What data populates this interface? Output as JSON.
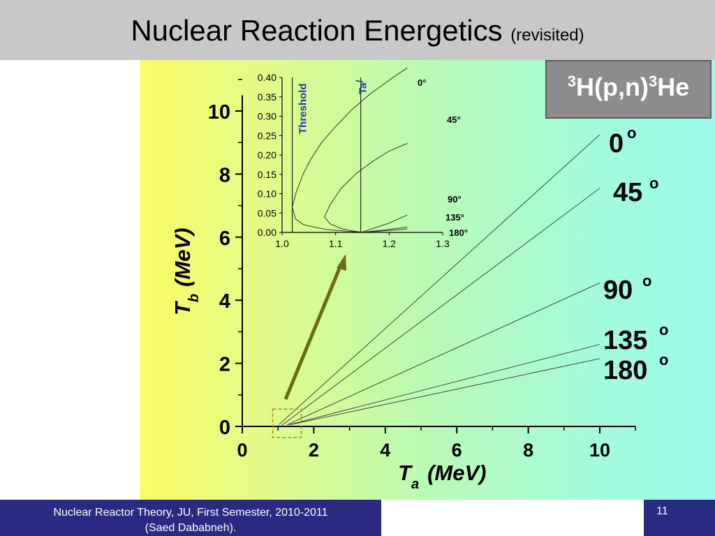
{
  "header": {
    "title": "Nuclear Reaction Energetics",
    "subtitle": "(revisited)"
  },
  "reaction": {
    "pre_sup": "3",
    "pre": "H(p,n)",
    "mid_sup": "3",
    "post": "He"
  },
  "footer": {
    "course_line1": "Nuclear Reactor Theory, JU, First Semester, 2010-2011",
    "course_line2": "(Saed Dababneh).",
    "page_number": "11"
  },
  "colors": {
    "highlight_arrow": "#6b6b14",
    "threshold_line": "#1e3ea8",
    "box_outline": "#b08a10"
  },
  "chart_data": [
    {
      "type": "line",
      "xlabel_main": "T",
      "xlabel_sub": "a",
      "xlabel_unit": "(MeV)",
      "ylabel_main": "T",
      "ylabel_sub": "b",
      "ylabel_unit": "(MeV)",
      "xlim": [
        0,
        11
      ],
      "ylim": [
        0,
        10.5
      ],
      "xticks": [
        0,
        2,
        4,
        6,
        8,
        10
      ],
      "yticks": [
        0,
        2,
        4,
        6,
        8,
        10
      ],
      "grid": false,
      "series": [
        {
          "name": "0",
          "points": [
            [
              1.02,
              0.05
            ],
            [
              10,
              9.25
            ]
          ]
        },
        {
          "name": "45",
          "points": [
            [
              1.1,
              0.03
            ],
            [
              10,
              7.55
            ]
          ]
        },
        {
          "name": "90",
          "points": [
            [
              1.25,
              0.05
            ],
            [
              10,
              4.55
            ]
          ]
        },
        {
          "name": "135",
          "points": [
            [
              1.3,
              0.05
            ],
            [
              10,
              2.6
            ]
          ]
        },
        {
          "name": "180",
          "points": [
            [
              1.32,
              0.05
            ],
            [
              10,
              2.15
            ]
          ]
        }
      ],
      "series_labels": [
        "0",
        "45",
        "90",
        "135",
        "180"
      ],
      "degree_mark": "o",
      "highlight_box_x": [
        0.85,
        1.65
      ],
      "highlight_box_y": [
        -0.35,
        0.55
      ]
    },
    {
      "type": "line",
      "inset": true,
      "xlim": [
        1.0,
        1.3
      ],
      "ylim": [
        0,
        0.4
      ],
      "xtick_labels": [
        "1.0",
        "1.1",
        "1.2",
        "1.3"
      ],
      "ytick_labels": [
        "0.00",
        "0.05",
        "0.10",
        "0.15",
        "0.20",
        "0.25",
        "0.30",
        "0.35",
        "0.40"
      ],
      "vertical_lines": [
        {
          "label": "Threshold",
          "x": 1.019
        },
        {
          "label": "Ta",
          "label_mark": "/",
          "x": 1.147
        }
      ],
      "curve_labels": [
        "0",
        "45",
        "90",
        "135",
        "180"
      ],
      "degree_mark": "°",
      "curves": [
        {
          "name": "0",
          "points": [
            [
              1.019,
              0.065
            ],
            [
              1.026,
              0.102
            ],
            [
              1.039,
              0.15
            ],
            [
              1.054,
              0.19
            ],
            [
              1.074,
              0.232
            ],
            [
              1.099,
              0.272
            ],
            [
              1.129,
              0.315
            ],
            [
              1.164,
              0.357
            ],
            [
              1.204,
              0.397
            ],
            [
              1.234,
              0.425
            ]
          ]
        },
        {
          "name": "0-lower",
          "points": [
            [
              1.019,
              0.065
            ],
            [
              1.025,
              0.035
            ],
            [
              1.04,
              0.02
            ],
            [
              1.08,
              0.008
            ],
            [
              1.12,
              0.003
            ],
            [
              1.147,
              0.001
            ]
          ]
        },
        {
          "name": "45",
          "points": [
            [
              1.079,
              0.04
            ],
            [
              1.09,
              0.072
            ],
            [
              1.11,
              0.113
            ],
            [
              1.14,
              0.154
            ],
            [
              1.17,
              0.184
            ],
            [
              1.2,
              0.21
            ],
            [
              1.234,
              0.23
            ]
          ]
        },
        {
          "name": "45-lower",
          "points": [
            [
              1.079,
              0.04
            ],
            [
              1.09,
              0.022
            ],
            [
              1.11,
              0.01
            ],
            [
              1.13,
              0.004
            ],
            [
              1.147,
              0.001
            ]
          ]
        },
        {
          "name": "90",
          "points": [
            [
              1.147,
              0.0
            ],
            [
              1.17,
              0.01
            ],
            [
              1.2,
              0.024
            ],
            [
              1.234,
              0.045
            ]
          ]
        },
        {
          "name": "135",
          "points": [
            [
              1.147,
              0.0
            ],
            [
              1.19,
              0.006
            ],
            [
              1.234,
              0.014
            ]
          ]
        },
        {
          "name": "180",
          "points": [
            [
              1.147,
              0.0
            ],
            [
              1.19,
              0.004
            ],
            [
              1.234,
              0.009
            ]
          ]
        }
      ]
    }
  ]
}
